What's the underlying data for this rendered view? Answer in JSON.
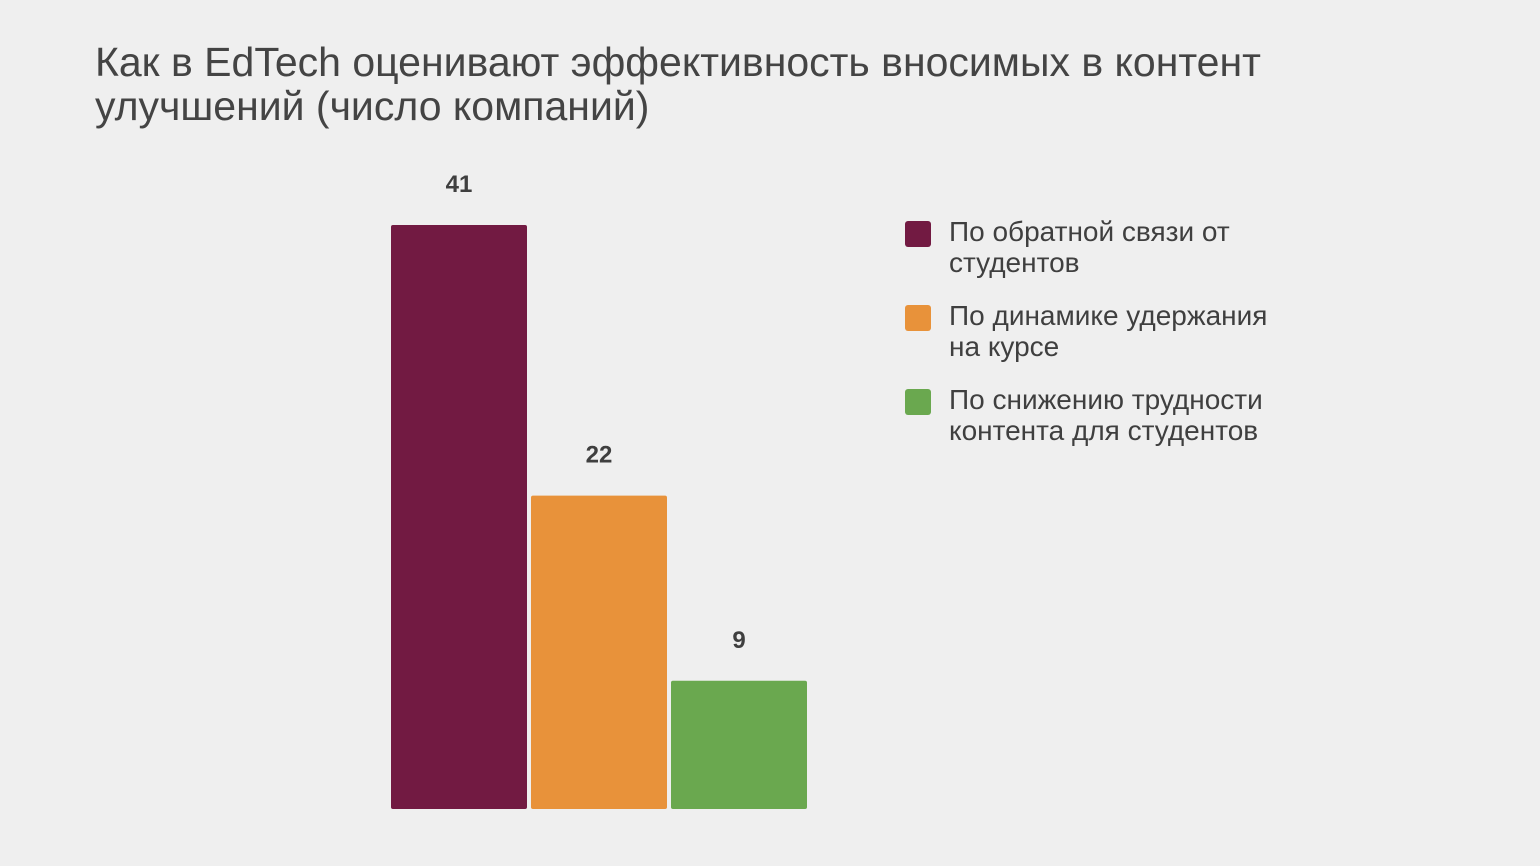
{
  "chart_data": {
    "type": "bar",
    "title": "Как в EdTech оценивают эффективность вносимых в контент улучшений (число компаний)",
    "categories": [
      "По обратной связи от студентов",
      "По динамике удержания на курсе",
      "По снижению трудности контента для студентов"
    ],
    "values": [
      41,
      22,
      9
    ],
    "data_labels": [
      "41",
      "22",
      "9"
    ],
    "colors": [
      "#721a42",
      "#e8923a",
      "#6aa84f"
    ],
    "ylim": [
      0,
      41
    ],
    "grid": false,
    "axes_visible": false,
    "legend_position": "right"
  },
  "legend": {
    "items": [
      {
        "label": "По обратной связи от студентов",
        "color": "#721a42"
      },
      {
        "label": "По динамике удержания на курсе",
        "color": "#e8923a"
      },
      {
        "label": "По снижению трудности контента для студентов",
        "color": "#6aa84f"
      }
    ]
  }
}
